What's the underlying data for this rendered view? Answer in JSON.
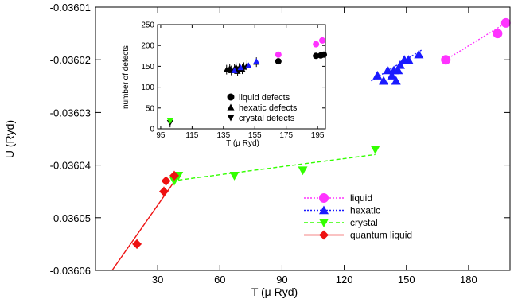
{
  "chart_data": [
    {
      "type": "scatter",
      "xlabel": "T (μ Ryd)",
      "ylabel": "U (Ryd)",
      "xlim": [
        0,
        200
      ],
      "ylim": [
        -0.03606,
        -0.03601
      ],
      "xticks": [
        "30",
        "60",
        "90",
        "120",
        "150",
        "180"
      ],
      "yticks": [
        "-0.03601",
        "-0.03602",
        "-0.03603",
        "-0.03604",
        "-0.03605",
        "-0.03606"
      ],
      "legend_position": "lower-right",
      "series": [
        {
          "name": "liquid",
          "marker": "circle",
          "color": "#ff33ff",
          "line": "dotted",
          "points": [
            [
              169,
              -0.03602
            ],
            [
              194,
              -0.036015
            ],
            [
              198,
              -0.036013
            ]
          ],
          "fit": [
            [
              169,
              -0.03602
            ],
            [
              198,
              -0.036013
            ]
          ]
        },
        {
          "name": "hexatic",
          "marker": "triangle-up",
          "color": "#1a1aff",
          "line": "dotted",
          "points": [
            [
              136,
              -0.036023
            ],
            [
              139,
              -0.036024
            ],
            [
              141,
              -0.036022
            ],
            [
              143,
              -0.036023
            ],
            [
              144,
              -0.036022
            ],
            [
              145,
              -0.036024
            ],
            [
              146,
              -0.036022
            ],
            [
              147,
              -0.036021
            ],
            [
              149,
              -0.03602
            ],
            [
              151,
              -0.03602
            ],
            [
              156,
              -0.036019
            ]
          ],
          "fit": [
            [
              133,
              -0.036024
            ],
            [
              158,
              -0.036018
            ]
          ]
        },
        {
          "name": "crystal",
          "marker": "triangle-down",
          "color": "#33ff00",
          "line": "dashed",
          "points": [
            [
              38,
              -0.036043
            ],
            [
              40,
              -0.036042
            ],
            [
              67,
              -0.036042
            ],
            [
              100,
              -0.036041
            ],
            [
              135,
              -0.036037
            ]
          ],
          "fit": [
            [
              37,
              -0.036043
            ],
            [
              135,
              -0.036038
            ]
          ]
        },
        {
          "name": "quantum liquid",
          "marker": "diamond",
          "color": "#ee1111",
          "line": "solid",
          "points": [
            [
              20,
              -0.036055
            ],
            [
              33,
              -0.036045
            ],
            [
              34,
              -0.036043
            ],
            [
              38,
              -0.036042
            ]
          ],
          "fit": [
            [
              8,
              -0.03606
            ],
            [
              40,
              -0.036042
            ]
          ]
        }
      ]
    },
    {
      "type": "scatter",
      "xlabel": "T (μ Ryd)",
      "ylabel": "number of defects",
      "xlim": [
        93,
        200
      ],
      "ylim": [
        0,
        250
      ],
      "xticks": [
        "95",
        "115",
        "135",
        "155",
        "175",
        "195"
      ],
      "yticks": [
        "0",
        "50",
        "100",
        "150",
        "200",
        "250"
      ],
      "legend_position": "lower-right",
      "series": [
        {
          "name": "liquid defects",
          "marker": "circle",
          "color": "#000000",
          "points": [
            [
              170,
              162
            ],
            [
              194,
              175
            ],
            [
              197,
              176
            ],
            [
              199,
              178
            ]
          ]
        },
        {
          "name": "",
          "marker": "circle",
          "color": "#ff33ff",
          "points": [
            [
              170,
              178
            ],
            [
              194,
              203
            ],
            [
              198,
              212
            ]
          ]
        },
        {
          "name": "hexatic defects",
          "marker": "triangle-up",
          "color": "#000000",
          "points": [
            [
              137,
              142
            ],
            [
              139,
              145
            ],
            [
              140,
              140
            ],
            [
              142,
              144
            ],
            [
              143,
              148
            ],
            [
              144,
              138
            ],
            [
              145,
              146
            ],
            [
              147,
              143
            ],
            [
              148,
              148
            ],
            [
              150,
              152
            ],
            [
              156,
              160
            ]
          ]
        },
        {
          "name": "",
          "marker": "triangle-up",
          "color": "#1a1aff",
          "points": [
            [
              142,
              140
            ],
            [
              146,
              147
            ],
            [
              151,
              152
            ],
            [
              156,
              162
            ]
          ]
        },
        {
          "name": "crystal defects",
          "marker": "triangle-down",
          "color": "#000000",
          "points": [
            [
              101,
              15
            ]
          ]
        },
        {
          "name": "",
          "marker": "triangle-down",
          "color": "#33ff00",
          "points": [
            [
              101,
              19
            ]
          ]
        }
      ]
    }
  ]
}
